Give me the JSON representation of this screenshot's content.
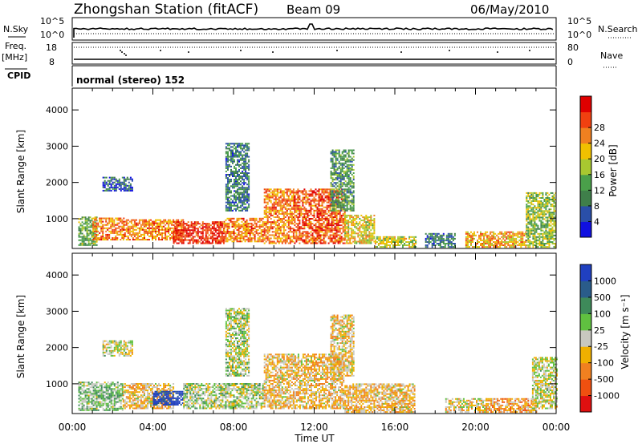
{
  "header": {
    "station": "Zhongshan Station (fitACF)",
    "beam": "Beam 09",
    "date": "06/May/2010"
  },
  "top_panels": {
    "nsky_label": "N.Sky",
    "nsky_ticks": [
      "10^5",
      "10^0"
    ],
    "nsearch_label": "N.Search",
    "nsearch_ticks": [
      "10^5",
      "10^0"
    ],
    "freq_label": "Freq.",
    "freq_unit": "[MHz]",
    "freq_ticks": [
      "18",
      "8"
    ],
    "nave_label": "Nave",
    "nave_ticks": [
      "80",
      "0"
    ],
    "cpid_label": "CPID",
    "cpid_text": "normal (stereo) 152"
  },
  "colors": {
    "power_scale": [
      "#1010e0",
      "#2a4fa8",
      "#3f7f4a",
      "#4aa04a",
      "#a8c830",
      "#f0c000",
      "#f08020",
      "#f04010",
      "#e00000"
    ],
    "velocity_scale": [
      "#2040c0",
      "#2a5c8a",
      "#3e8a5a",
      "#60c040",
      "#c8c8c0",
      "#f0b000",
      "#f08020",
      "#f05010",
      "#e01010"
    ]
  },
  "axes": {
    "ylabel": "Slant Range [km]",
    "xlabel": "Time UT",
    "x_ticks": [
      "00:00",
      "04:00",
      "08:00",
      "12:00",
      "16:00",
      "20:00",
      "00:00"
    ],
    "y_ticks": [
      "1000",
      "2000",
      "3000",
      "4000"
    ]
  },
  "colorbars": {
    "power": {
      "label": "Power [dB]",
      "ticks": [
        "4",
        "8",
        "12",
        "16",
        "20",
        "24",
        "28"
      ]
    },
    "velocity": {
      "label": "Velocity [m s⁻¹]",
      "ticks": [
        "1000",
        "500",
        "100",
        "25",
        "-25",
        "-100",
        "-500",
        "-1000"
      ]
    }
  },
  "chart_data": [
    {
      "type": "heatmap",
      "title": "",
      "xlabel": "Time UT",
      "ylabel": "Slant Range [km]",
      "xlim": [
        0,
        24
      ],
      "ylim": [
        180,
        4600
      ],
      "value_label": "Power [dB]",
      "value_range": [
        0,
        30
      ],
      "patches": [
        {
          "t0": 0.3,
          "t1": 1.2,
          "r0": 250,
          "r1": 1050,
          "v": 12
        },
        {
          "t0": 1.0,
          "t1": 2.6,
          "r0": 400,
          "r1": 1000,
          "v": 22
        },
        {
          "t0": 1.5,
          "t1": 3.0,
          "r0": 1750,
          "r1": 2150,
          "v": 6
        },
        {
          "t0": 2.5,
          "t1": 5.5,
          "r0": 400,
          "r1": 950,
          "v": 22
        },
        {
          "t0": 5.0,
          "t1": 7.5,
          "r0": 300,
          "r1": 900,
          "v": 26
        },
        {
          "t0": 7.5,
          "t1": 9.5,
          "r0": 350,
          "r1": 1000,
          "v": 22
        },
        {
          "t0": 7.6,
          "t1": 8.8,
          "r0": 1200,
          "r1": 3050,
          "v": 8
        },
        {
          "t0": 9.5,
          "t1": 11.0,
          "r0": 300,
          "r1": 1800,
          "v": 22
        },
        {
          "t0": 11.0,
          "t1": 13.5,
          "r0": 300,
          "r1": 1800,
          "v": 24
        },
        {
          "t0": 12.8,
          "t1": 14.0,
          "r0": 1200,
          "r1": 2900,
          "v": 10
        },
        {
          "t0": 13.5,
          "t1": 15.0,
          "r0": 300,
          "r1": 1100,
          "v": 18
        },
        {
          "t0": 15.0,
          "t1": 17.0,
          "r0": 200,
          "r1": 500,
          "v": 16
        },
        {
          "t0": 17.5,
          "t1": 19.0,
          "r0": 200,
          "r1": 600,
          "v": 8
        },
        {
          "t0": 19.5,
          "t1": 22.5,
          "r0": 200,
          "r1": 650,
          "v": 20
        },
        {
          "t0": 22.5,
          "t1": 24.0,
          "r0": 200,
          "r1": 1700,
          "v": 14
        }
      ]
    },
    {
      "type": "heatmap",
      "title": "",
      "xlabel": "Time UT",
      "ylabel": "Slant Range [km]",
      "xlim": [
        0,
        24
      ],
      "ylim": [
        180,
        4600
      ],
      "value_label": "Velocity [m s⁻¹]",
      "value_range": [
        -1000,
        1000
      ],
      "patches": [
        {
          "t0": 0.3,
          "t1": 2.5,
          "r0": 250,
          "r1": 1050,
          "v": 200
        },
        {
          "t0": 1.5,
          "t1": 3.0,
          "r0": 1750,
          "r1": 2200,
          "v": 0
        },
        {
          "t0": 2.5,
          "t1": 5.0,
          "r0": 300,
          "r1": 1000,
          "v": -200
        },
        {
          "t0": 4.0,
          "t1": 5.5,
          "r0": 400,
          "r1": 800,
          "v": 1000
        },
        {
          "t0": 5.5,
          "t1": 9.5,
          "r0": 300,
          "r1": 1000,
          "v": 100
        },
        {
          "t0": 7.6,
          "t1": 8.8,
          "r0": 1200,
          "r1": 3050,
          "v": 50
        },
        {
          "t0": 9.5,
          "t1": 13.5,
          "r0": 300,
          "r1": 1800,
          "v": -200
        },
        {
          "t0": 12.8,
          "t1": 14.0,
          "r0": 1200,
          "r1": 2900,
          "v": -150
        },
        {
          "t0": 13.5,
          "t1": 17.0,
          "r0": 200,
          "r1": 1000,
          "v": -200
        },
        {
          "t0": 18.5,
          "t1": 20.5,
          "r0": 200,
          "r1": 600,
          "v": -100
        },
        {
          "t0": 20.5,
          "t1": 23.0,
          "r0": 200,
          "r1": 600,
          "v": -300
        },
        {
          "t0": 22.8,
          "t1": 24.0,
          "r0": 300,
          "r1": 1700,
          "v": 0
        }
      ]
    }
  ]
}
